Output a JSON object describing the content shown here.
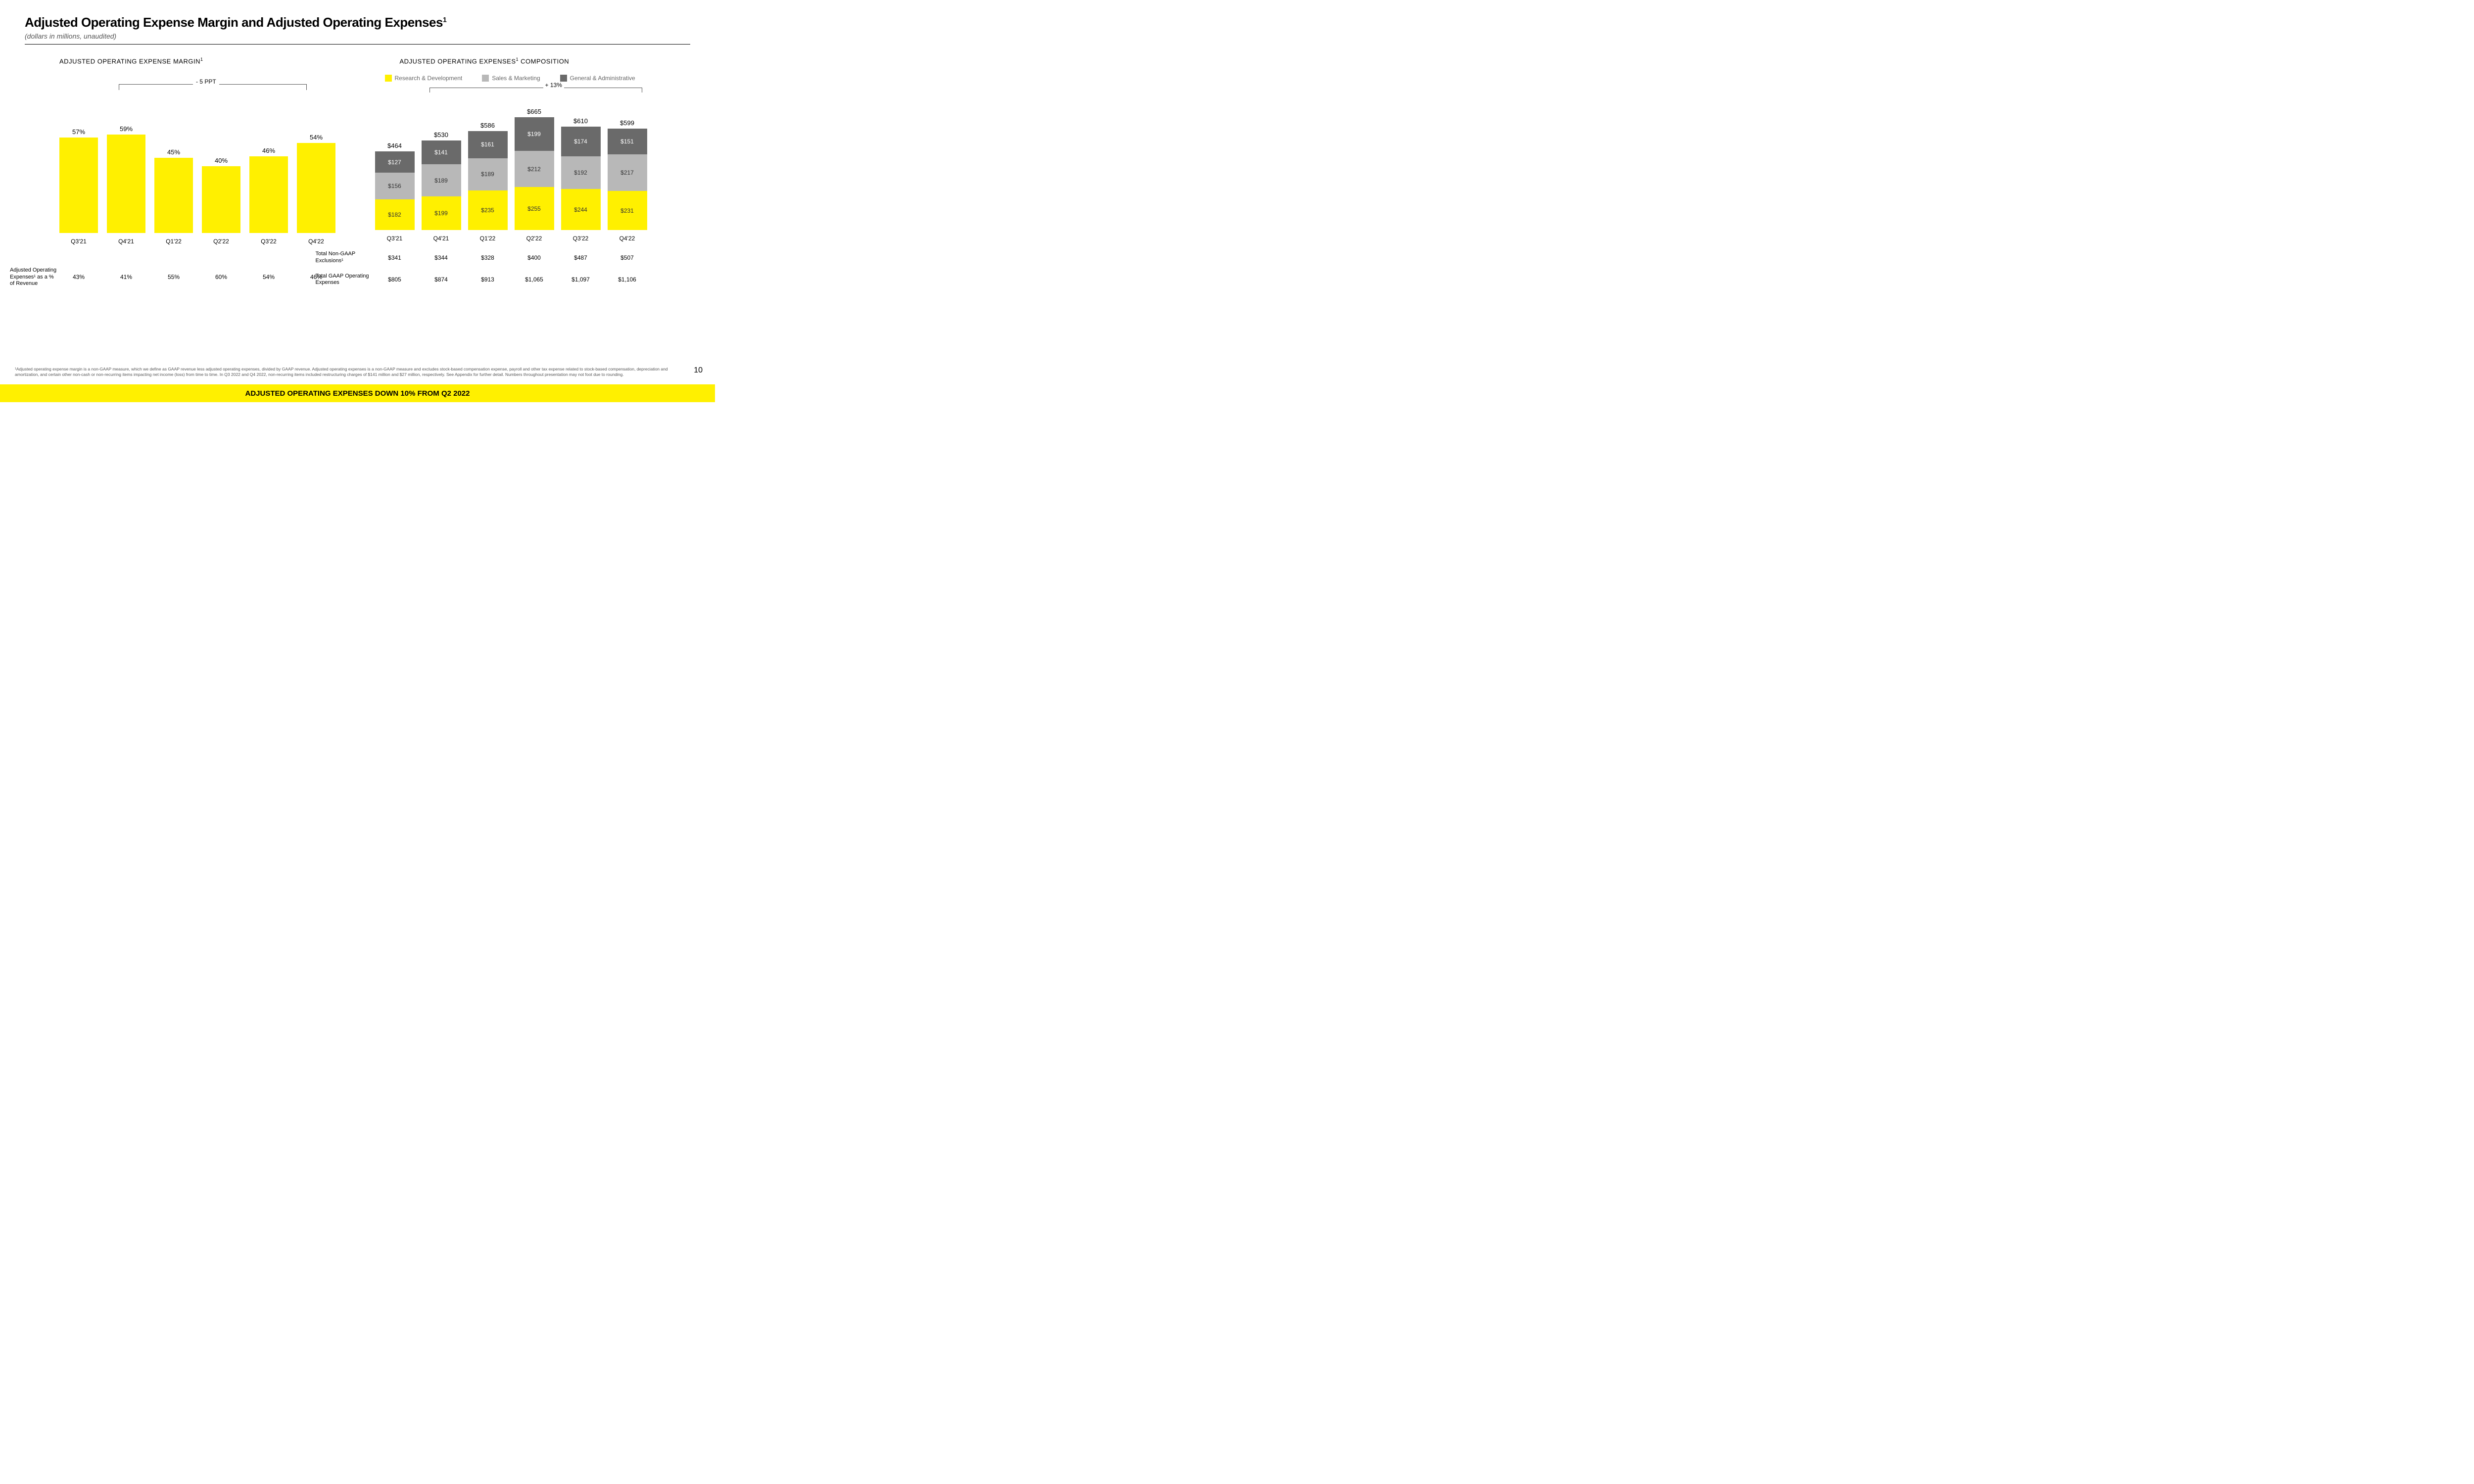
{
  "colors": {
    "yellow": "#fff000",
    "lightgray": "#b8b8b8",
    "darkgray": "#6a6a6a",
    "text": "#000000",
    "muted": "#666666",
    "bg": "#ffffff"
  },
  "header": {
    "title": "Adjusted Operating Expense Margin and Adjusted Operating Expenses",
    "title_sup": "1",
    "subtitle": "(dollars in millions, unaudited)"
  },
  "left": {
    "title": "ADJUSTED OPERATING EXPENSE MARGIN",
    "title_sup": "1",
    "bracket_label": "- 5 PPT",
    "chart": {
      "type": "bar",
      "ylim_max": 65,
      "bar_color": "#fff000",
      "label_fontsize": 13,
      "categories": [
        "Q3'21",
        "Q4'21",
        "Q1'22",
        "Q2'22",
        "Q3'22",
        "Q4'22"
      ],
      "values_pct": [
        57,
        59,
        45,
        40,
        46,
        54
      ],
      "value_labels": [
        "57%",
        "59%",
        "45%",
        "40%",
        "46%",
        "54%"
      ]
    },
    "table_row": {
      "header": "Adjusted Operating Expenses¹ as a % of Revenue",
      "cells": [
        "43%",
        "41%",
        "55%",
        "60%",
        "54%",
        "46%"
      ]
    }
  },
  "right": {
    "title": "ADJUSTED OPERATING EXPENSES",
    "title_sup": "1",
    "title_tail": " COMPOSITION",
    "bracket_label": "+ 13%",
    "legend": [
      {
        "label": "Research & Development",
        "color": "#fff000"
      },
      {
        "label": "Sales & Marketing",
        "color": "#b8b8b8"
      },
      {
        "label": "General & Administrative",
        "color": "#6a6a6a"
      }
    ],
    "chart": {
      "type": "stacked-bar",
      "ylim_max": 700,
      "categories": [
        "Q3'21",
        "Q4'21",
        "Q1'22",
        "Q2'22",
        "Q3'22",
        "Q4'22"
      ],
      "totals": [
        464,
        530,
        586,
        665,
        610,
        599
      ],
      "total_labels": [
        "$464",
        "$530",
        "$586",
        "$665",
        "$610",
        "$599"
      ],
      "segments": {
        "ga": {
          "color": "#6a6a6a",
          "values": [
            127,
            141,
            161,
            199,
            174,
            151
          ],
          "labels": [
            "$127",
            "$141",
            "$161",
            "$199",
            "$174",
            "$151"
          ]
        },
        "sm": {
          "color": "#b8b8b8",
          "values": [
            156,
            189,
            189,
            212,
            192,
            217
          ],
          "labels": [
            "$156",
            "$189",
            "$189",
            "$212",
            "$192",
            "$217"
          ]
        },
        "rd": {
          "color": "#fff000",
          "values": [
            182,
            199,
            235,
            255,
            244,
            231
          ],
          "labels": [
            "$182",
            "$199",
            "$235",
            "$255",
            "$244",
            "$231"
          ]
        }
      }
    },
    "table_rows": [
      {
        "header": "Total Non-GAAP Exclusions¹",
        "cells": [
          "$341",
          "$344",
          "$328",
          "$400",
          "$487",
          "$507"
        ]
      },
      {
        "header": "Total GAAP Operating Expenses",
        "cells": [
          "$805",
          "$874",
          "$913",
          "$1,065",
          "$1,097",
          "$1,106"
        ]
      }
    ]
  },
  "footnote": "¹Adjusted operating expense margin is a non-GAAP measure, which we define as GAAP revenue less adjusted operating expenses, divided by GAAP revenue. Adjusted operating expenses is a non-GAAP measure and excludes stock-based compensation expense, payroll and other tax expense related to stock-based compensation, depreciation and amortization, and certain other non-cash or non-recurring items impacting net income (loss) from time to time. In Q3 2022 and Q4 2022, non-recurring items included restructuring charges of $141 million and $27 million, respectively. See Appendix for further detail. Numbers throughout presentation may not foot due to rounding.",
  "page_number": "10",
  "banner": "ADJUSTED OPERATING EXPENSES DOWN 10% FROM Q2 2022"
}
